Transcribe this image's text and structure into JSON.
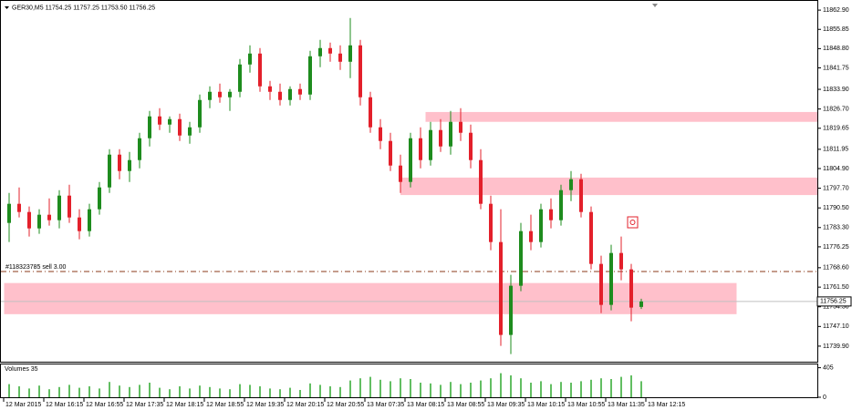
{
  "chart_data": {
    "type": "candlestick",
    "title": "GER30,M5  11754.25 11757.25 11753.50 11756.25",
    "bull_color": "#1e8c1e",
    "bear_color": "#e3202b",
    "ohlc": [
      [
        11785,
        11796,
        11778,
        11792
      ],
      [
        11792,
        11798,
        11787,
        11789
      ],
      [
        11789,
        11791,
        11780,
        11783
      ],
      [
        11783,
        11790,
        11781,
        11788
      ],
      [
        11788,
        11794,
        11784,
        11786
      ],
      [
        11786,
        11797,
        11783,
        11795
      ],
      [
        11795,
        11799,
        11785,
        11787
      ],
      [
        11787,
        11790,
        11779,
        11782
      ],
      [
        11782,
        11792,
        11780,
        11790
      ],
      [
        11790,
        11800,
        11788,
        11798
      ],
      [
        11798,
        11812,
        11796,
        11810
      ],
      [
        11810,
        11812,
        11801,
        11804
      ],
      [
        11804,
        11811,
        11800,
        11808
      ],
      [
        11808,
        11818,
        11805,
        11816
      ],
      [
        11816,
        11826,
        11813,
        11824
      ],
      [
        11824,
        11827,
        11819,
        11821
      ],
      [
        11821,
        11824,
        11818,
        11823
      ],
      [
        11823,
        11825,
        11815,
        11817
      ],
      [
        11817,
        11822,
        11814,
        11820
      ],
      [
        11820,
        11832,
        11818,
        11830
      ],
      [
        11830,
        11835,
        11827,
        11833
      ],
      [
        11833,
        11836,
        11829,
        11831
      ],
      [
        11831,
        11834,
        11826,
        11833
      ],
      [
        11833,
        11845,
        11831,
        11843
      ],
      [
        11843,
        11850,
        11840,
        11847
      ],
      [
        11847,
        11849,
        11833,
        11835
      ],
      [
        11835,
        11837,
        11830,
        11833
      ],
      [
        11833,
        11836,
        11828,
        11830
      ],
      [
        11830,
        11835,
        11828,
        11834
      ],
      [
        11834,
        11836,
        11830,
        11832
      ],
      [
        11832,
        11848,
        11830,
        11846
      ],
      [
        11846,
        11852,
        11842,
        11849
      ],
      [
        11849,
        11851,
        11844,
        11847
      ],
      [
        11847,
        11850,
        11841,
        11844
      ],
      [
        11844,
        11860,
        11838,
        11850
      ],
      [
        11850,
        11852,
        11828,
        11831
      ],
      [
        11831,
        11833,
        11818,
        11820
      ],
      [
        11820,
        11823,
        11812,
        11815
      ],
      [
        11815,
        11818,
        11804,
        11806
      ],
      [
        11806,
        11810,
        11796,
        11800
      ],
      [
        11800,
        11818,
        11798,
        11816
      ],
      [
        11816,
        11820,
        11805,
        11808
      ],
      [
        11808,
        11822,
        11806,
        11819
      ],
      [
        11819,
        11823,
        11811,
        11813
      ],
      [
        11813,
        11826,
        11810,
        11822
      ],
      [
        11822,
        11827,
        11815,
        11818
      ],
      [
        11818,
        11821,
        11805,
        11808
      ],
      [
        11808,
        11812,
        11790,
        11792
      ],
      [
        11792,
        11795,
        11775,
        11778
      ],
      [
        11778,
        11790,
        11740,
        11744
      ],
      [
        11744,
        11766,
        11737,
        11762
      ],
      [
        11762,
        11785,
        11760,
        11782
      ],
      [
        11782,
        11788,
        11775,
        11778
      ],
      [
        11778,
        11792,
        11776,
        11790
      ],
      [
        11790,
        11794,
        11783,
        11786
      ],
      [
        11786,
        11799,
        11784,
        11797
      ],
      [
        11797,
        11804,
        11793,
        11801
      ],
      [
        11801,
        11803,
        11787,
        11789
      ],
      [
        11789,
        11791,
        11768,
        11770
      ],
      [
        11770,
        11773,
        11752,
        11755
      ],
      [
        11755,
        11777,
        11753,
        11774
      ],
      [
        11774,
        11780,
        11764,
        11768
      ],
      [
        11768,
        11770,
        11749,
        11754
      ],
      [
        11754.25,
        11757.25,
        11753.5,
        11756.25
      ]
    ],
    "ylim": [
      11734.2,
      11866.6
    ],
    "yticks": [
      {
        "value": 11862.9,
        "label": "11862.90"
      },
      {
        "value": 11855.85,
        "label": "11855.85"
      },
      {
        "value": 11848.8,
        "label": "11848.80"
      },
      {
        "value": 11841.75,
        "label": "11841.75"
      },
      {
        "value": 11833.9,
        "label": "11833.90"
      },
      {
        "value": 11826.7,
        "label": "11826.70"
      },
      {
        "value": 11819.65,
        "label": "11819.65"
      },
      {
        "value": 11811.95,
        "label": "11811.95"
      },
      {
        "value": 11804.9,
        "label": "11804.90"
      },
      {
        "value": 11797.7,
        "label": "11797.70"
      },
      {
        "value": 11790.5,
        "label": "11790.50"
      },
      {
        "value": 11783.3,
        "label": "11783.30"
      },
      {
        "value": 11776.25,
        "label": "11776.25"
      },
      {
        "value": 11768.6,
        "label": "11768.60"
      },
      {
        "value": 11761.5,
        "label": "11761.50"
      },
      {
        "value": 11754.3,
        "label": "11754.30"
      },
      {
        "value": 11747.1,
        "label": "11747.10"
      },
      {
        "value": 11739.9,
        "label": "11739.90"
      }
    ],
    "xticks": [
      {
        "value": 0,
        "label": "12 Mar 2015"
      },
      {
        "value": 4,
        "label": "12 Mar 16:15"
      },
      {
        "value": 8,
        "label": "12 Mar 16:55"
      },
      {
        "value": 12,
        "label": "12 Mar 17:35"
      },
      {
        "value": 16,
        "label": "12 Mar 18:15"
      },
      {
        "value": 20,
        "label": "12 Mar 18:55"
      },
      {
        "value": 24,
        "label": "12 Mar 19:35"
      },
      {
        "value": 28,
        "label": "12 Mar 20:15"
      },
      {
        "value": 32,
        "label": "12 Mar 20:55"
      },
      {
        "value": 36,
        "label": "13 Mar 07:35"
      },
      {
        "value": 40,
        "label": "13 Mar 08:15"
      },
      {
        "value": 44,
        "label": "13 Mar 08:55"
      },
      {
        "value": 48,
        "label": "13 Mar 09:35"
      },
      {
        "value": 52,
        "label": "13 Mar 10:15"
      },
      {
        "value": 56,
        "label": "13 Mar 10:55"
      },
      {
        "value": 60,
        "label": "13 Mar 11:35"
      },
      {
        "value": 64,
        "label": "13 Mar 12:15"
      }
    ],
    "zones": [
      {
        "start": 41.5,
        "low": 11822,
        "high": 11825.6
      },
      {
        "start": 39,
        "low": 11795.2,
        "high": 11801.6
      },
      {
        "start": -0.5,
        "end": 72.5,
        "low": 11751.6,
        "high": 11763
      }
    ],
    "zone_color": "#ffc0cb",
    "order_line": {
      "label": "#118323785 sell 3.00",
      "price": 11767.2,
      "color": "#8b3a1a"
    },
    "current_price": 11756.25,
    "volume": {
      "title": "Volumes 35",
      "color": "#2ea82e",
      "ylim": [
        0,
        450
      ],
      "yticks": [
        405,
        0
      ],
      "values": [
        180,
        150,
        120,
        160,
        110,
        140,
        170,
        130,
        150,
        120,
        210,
        160,
        140,
        170,
        200,
        130,
        110,
        150,
        120,
        160,
        140,
        120,
        110,
        180,
        170,
        150,
        120,
        110,
        130,
        100,
        190,
        170,
        150,
        140,
        230,
        260,
        280,
        240,
        220,
        260,
        250,
        200,
        190,
        170,
        210,
        180,
        200,
        230,
        260,
        330,
        300,
        260,
        200,
        220,
        180,
        210,
        200,
        220,
        240,
        260,
        250,
        280,
        300,
        220
      ]
    }
  }
}
